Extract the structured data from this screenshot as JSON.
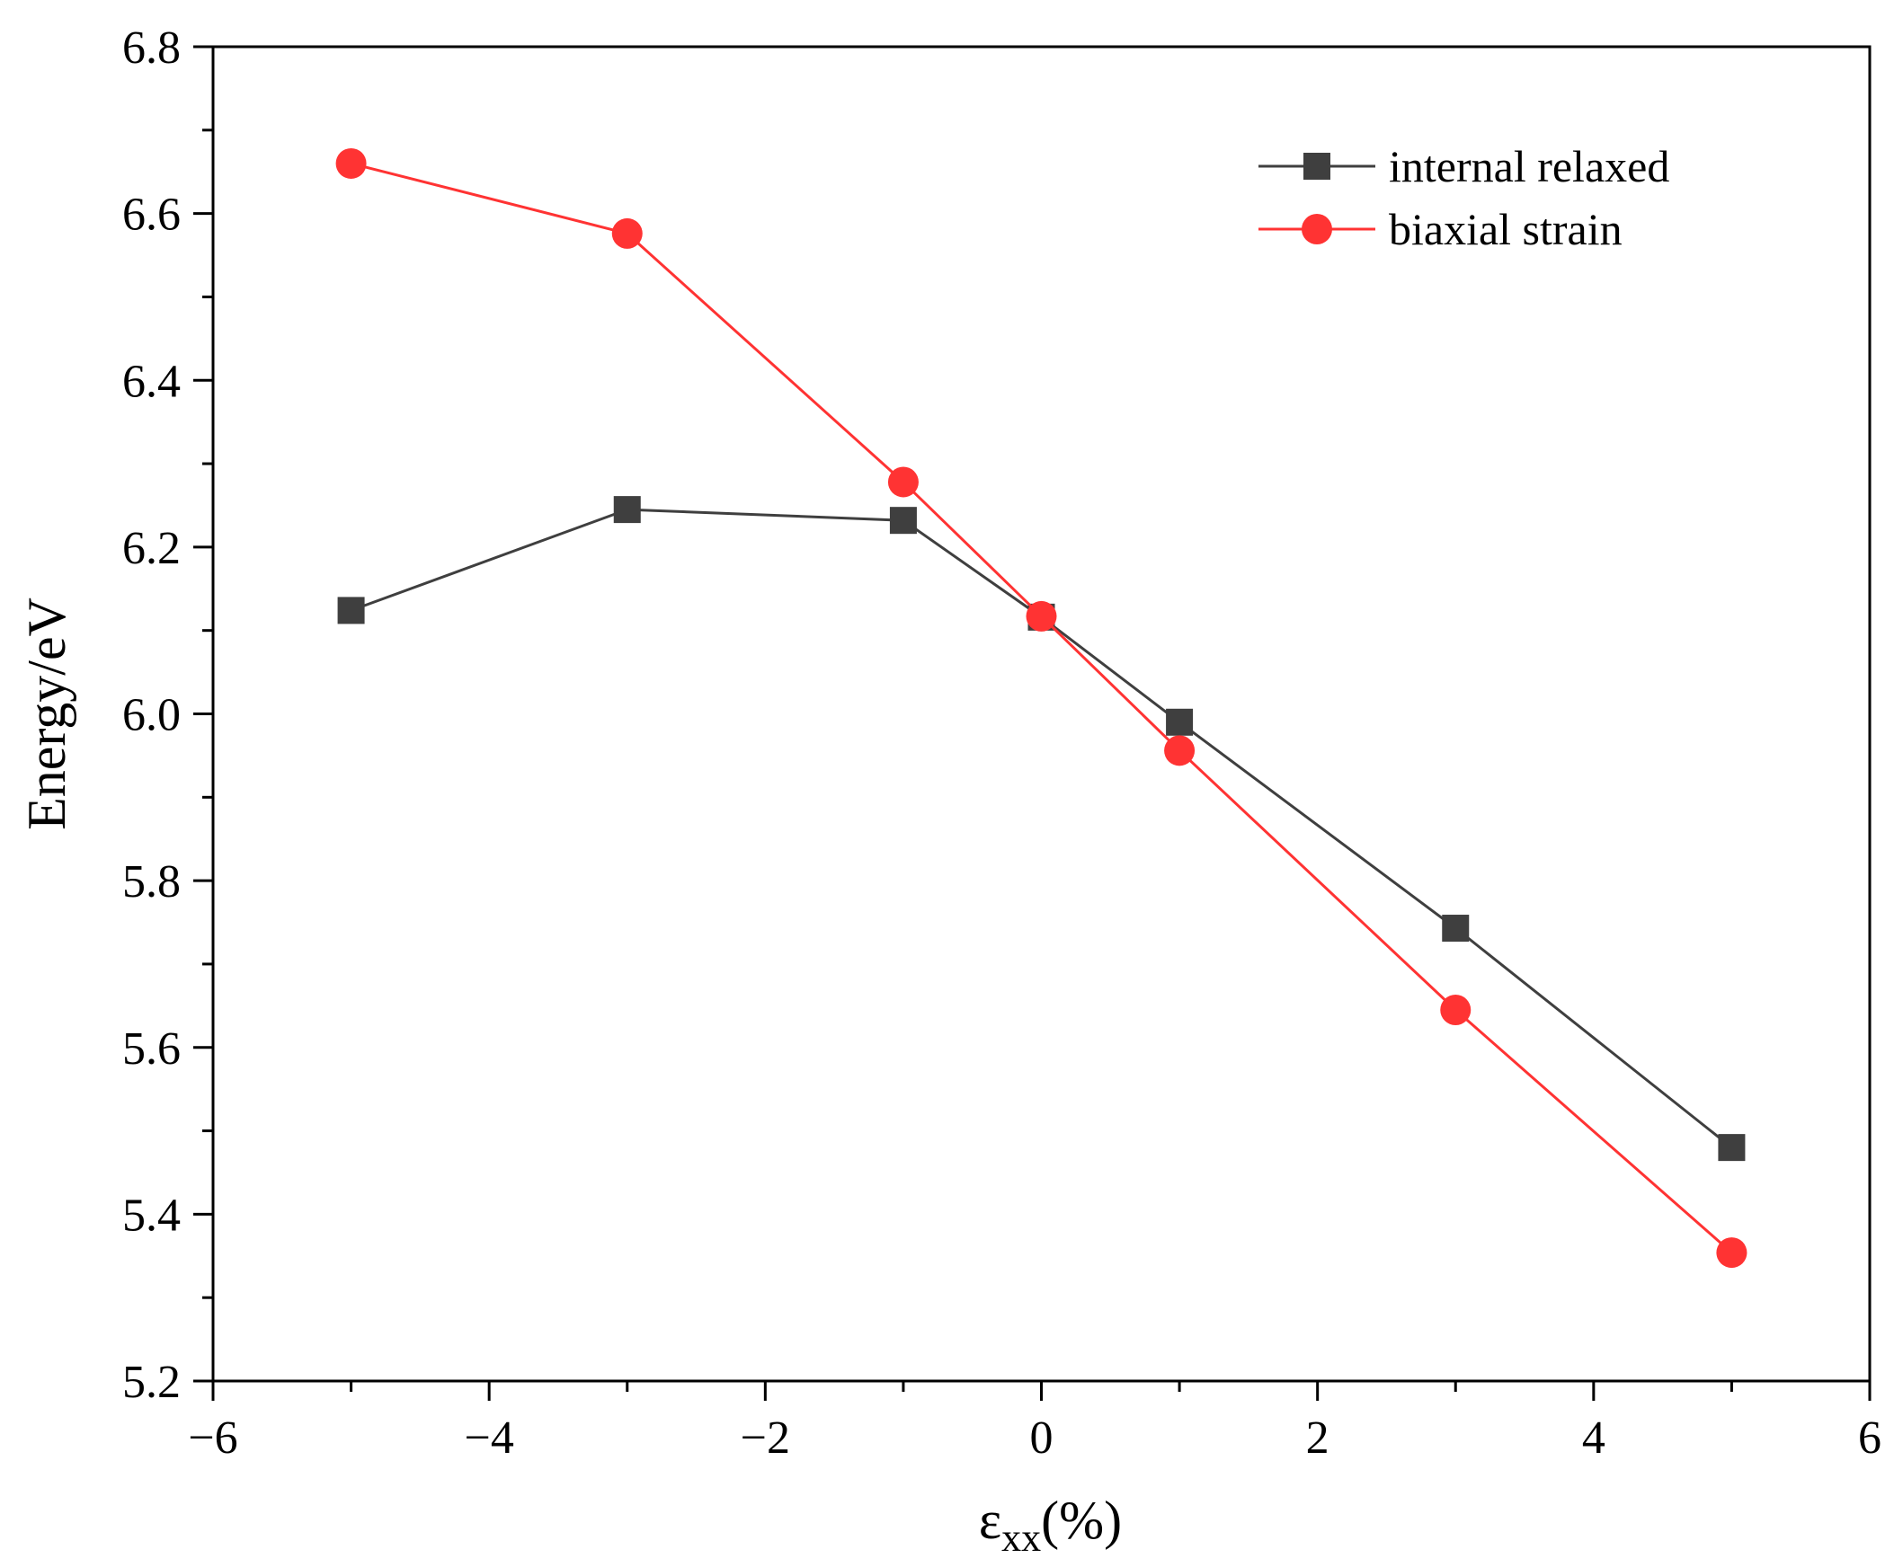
{
  "chart_data": {
    "type": "line",
    "title": "",
    "xlabel_main": "ε",
    "xlabel_sub": "xx",
    "xlabel_unit": "(%)",
    "ylabel": "Energy/eV",
    "xlim": [
      -6,
      6
    ],
    "ylim": [
      5.2,
      6.8
    ],
    "x_ticks": [
      -6,
      -4,
      -2,
      0,
      2,
      4,
      6
    ],
    "x_tick_labels": [
      "−6",
      "−4",
      "−2",
      "0",
      "2",
      "4",
      "6"
    ],
    "y_ticks": [
      5.2,
      5.4,
      5.6,
      5.8,
      6.0,
      6.2,
      6.4,
      6.6,
      6.8
    ],
    "y_tick_labels": [
      "5.2",
      "5.4",
      "5.6",
      "5.8",
      "6.0",
      "6.2",
      "6.4",
      "6.6",
      "6.8"
    ],
    "grid": false,
    "legend_position": "top-right",
    "x": [
      -5,
      -3,
      -1,
      0,
      1,
      3,
      5
    ],
    "series": [
      {
        "name": "internal relaxed",
        "marker": "square",
        "color": "#3f3f3f",
        "values": [
          6.124,
          6.245,
          6.232,
          6.116,
          5.99,
          5.743,
          5.48
        ]
      },
      {
        "name": "biaxial strain",
        "marker": "circle",
        "color": "#ff3333",
        "values": [
          6.66,
          6.576,
          6.278,
          6.117,
          5.956,
          5.645,
          5.354
        ]
      }
    ]
  }
}
